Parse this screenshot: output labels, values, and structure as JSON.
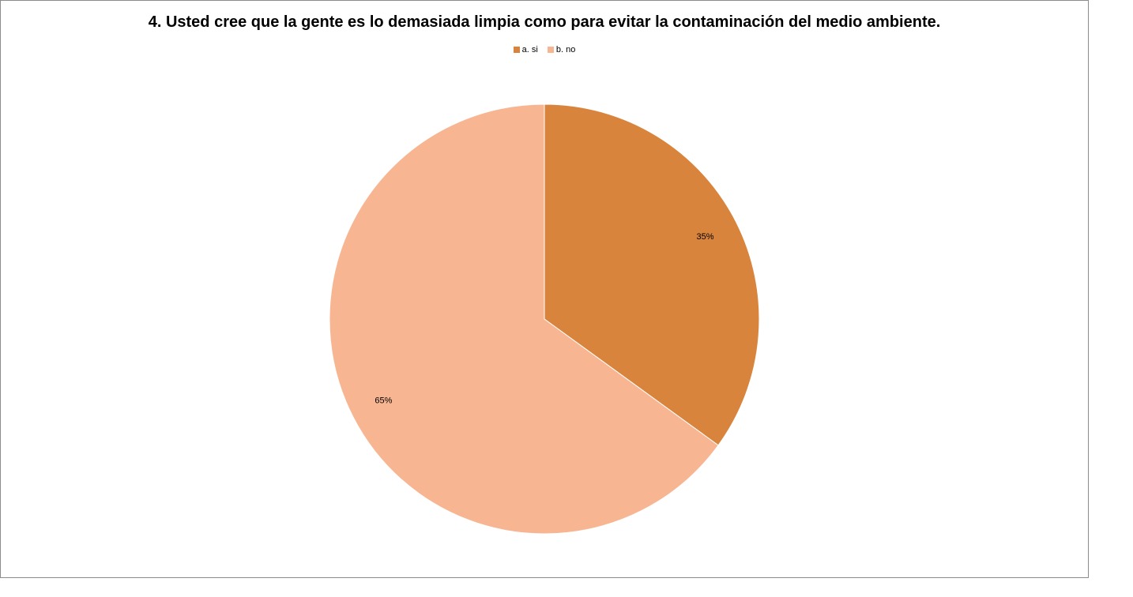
{
  "chart_data": {
    "type": "pie",
    "title": "4.  Usted cree que la gente es lo demasiada limpia como para evitar la contaminación del medio ambiente.",
    "legend_position": "top",
    "categories": [
      "a. si",
      "b. no"
    ],
    "values": [
      35,
      65
    ],
    "data_labels": [
      "35%",
      "65%"
    ],
    "colors": [
      "#d9843d",
      "#f7b592"
    ]
  }
}
